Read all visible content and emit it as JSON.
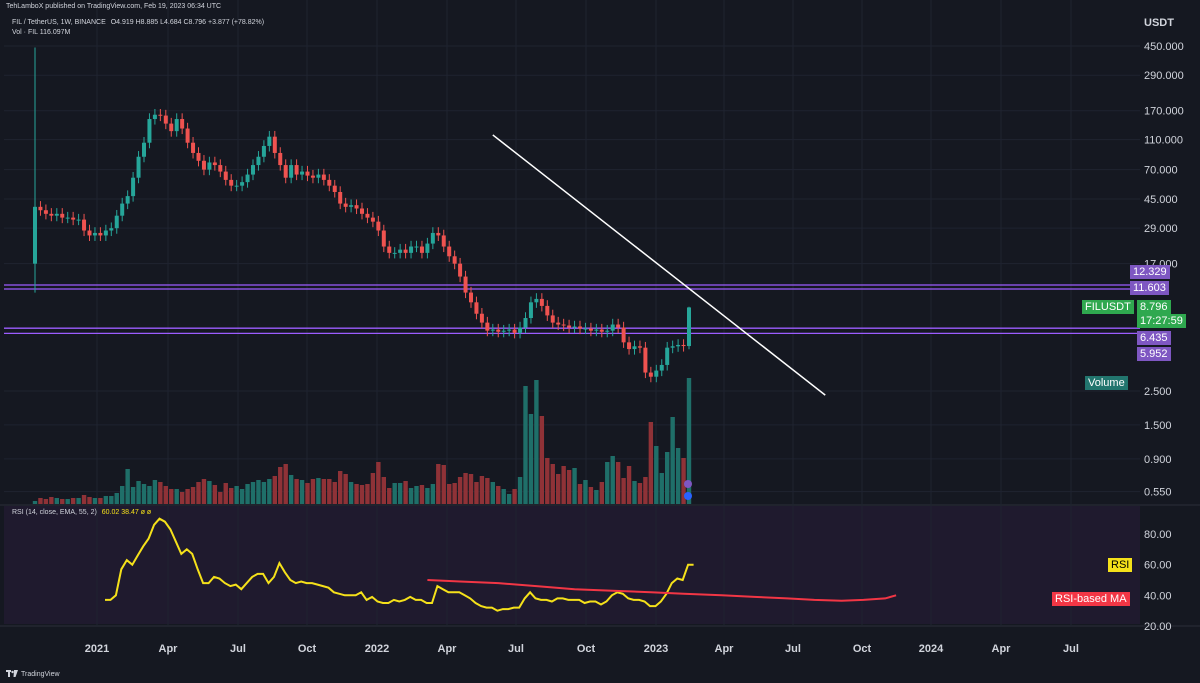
{
  "header": {
    "publisher": "TehLamboX published on TradingView.com, Feb 19, 2023 06:34 UTC",
    "symbol": "FIL / TetherUS, 1W, BINANCE",
    "ohlc": "O4.919 H8.885 L4.684 C8.796 +3.877 (+78.82%)",
    "volume_legend": "Vol · FIL  116.097M",
    "rsi_legend": "RSI (14, close, EMA, 55, 2)",
    "rsi_values": "60.02  38.47  ø  ø"
  },
  "price_axis": {
    "currency": "USDT",
    "ticks": [
      "450.000",
      "290.000",
      "170.000",
      "110.000",
      "70.000",
      "45.000",
      "29.000",
      "17.000",
      "2.500",
      "1.500",
      "0.900",
      "0.550"
    ],
    "tick_values": [
      450,
      290,
      170,
      110,
      70,
      45,
      29,
      17,
      2.5,
      1.5,
      0.9,
      0.55
    ]
  },
  "rsi_axis": {
    "ticks": [
      "80.00",
      "60.00",
      "40.00",
      "20.00"
    ],
    "tick_values": [
      80,
      60,
      40,
      20
    ]
  },
  "time_axis": {
    "labels": [
      "2021",
      "Apr",
      "Jul",
      "Oct",
      "2022",
      "Apr",
      "Jul",
      "Oct",
      "2023",
      "Apr",
      "Jul",
      "Oct",
      "2024",
      "Apr",
      "Jul"
    ]
  },
  "badges": {
    "level_12": "12.329",
    "level_11": "11.603",
    "symbol": "FILUSDT",
    "price": "8.796",
    "countdown": "17:27:59",
    "level_6": "6.435",
    "level_5": "5.952",
    "volume": "Volume",
    "rsi": "RSI",
    "rsi_ma": "RSI-based MA"
  },
  "footer": {
    "brand": "TradingView"
  },
  "colors": {
    "up": "#26a69a",
    "down": "#ef5350",
    "vol_up": "#1f6f69",
    "vol_down": "#8f3237",
    "level": "#9c5cff",
    "trendline": "#ffffff",
    "rsi": "#f5e11a",
    "rsi_ma": "#f23645",
    "bg": "#151821"
  },
  "chart_data": {
    "type": "candlestick",
    "scale": "log",
    "interval": "1W",
    "horizontal_levels": [
      12.329,
      11.603,
      6.435,
      5.952
    ],
    "trendline": [
      [
        84,
        118
      ],
      [
        145,
        2.35
      ]
    ],
    "closes": [
      40,
      38,
      36,
      35,
      36,
      34,
      34,
      33,
      33,
      28,
      26,
      27,
      26,
      28,
      29,
      35,
      42,
      47,
      62,
      85,
      105,
      150,
      160,
      158,
      140,
      125,
      150,
      130,
      105,
      90,
      80,
      70,
      78,
      75,
      68,
      60,
      55,
      55,
      58,
      65,
      75,
      85,
      100,
      115,
      90,
      75,
      62,
      75,
      65,
      68,
      64,
      62,
      65,
      60,
      55,
      50,
      42,
      40,
      41,
      39,
      36,
      34,
      32,
      28,
      22,
      20,
      20,
      21,
      20,
      22,
      22,
      20,
      23,
      27,
      26,
      22,
      19,
      17,
      14,
      11,
      9.5,
      8,
      7,
      6.2,
      6.3,
      6.1,
      6.2,
      6.3,
      6.0,
      6.5,
      7.5,
      9.5,
      10,
      9,
      7.8,
      7.0,
      6.8,
      6.7,
      6.5,
      6.6,
      6.4,
      6.4,
      6.2,
      6.3,
      6.1,
      6.2,
      6.8,
      6.5,
      5.2,
      4.7,
      4.9,
      4.8,
      3.3,
      3.1,
      3.4,
      3.7,
      4.8,
      4.9,
      5.0,
      4.919,
      8.796
    ],
    "volume_fill": [
      0.03,
      0.06,
      0.05,
      0.07,
      0.06,
      0.05,
      0.05,
      0.06,
      0.06,
      0.09,
      0.07,
      0.06,
      0.06,
      0.08,
      0.08,
      0.11,
      0.18,
      0.35,
      0.17,
      0.23,
      0.2,
      0.18,
      0.24,
      0.22,
      0.18,
      0.15,
      0.15,
      0.12,
      0.15,
      0.17,
      0.22,
      0.25,
      0.23,
      0.19,
      0.12,
      0.21,
      0.16,
      0.18,
      0.15,
      0.2,
      0.22,
      0.24,
      0.22,
      0.25,
      0.28,
      0.37,
      0.4,
      0.29,
      0.25,
      0.24,
      0.21,
      0.25,
      0.26,
      0.25,
      0.25,
      0.22,
      0.33,
      0.3,
      0.22,
      0.2,
      0.19,
      0.2,
      0.31,
      0.42,
      0.27,
      0.16,
      0.21,
      0.21,
      0.23,
      0.16,
      0.18,
      0.19,
      0.16,
      0.2,
      0.4,
      0.39,
      0.2,
      0.21,
      0.27,
      0.31,
      0.3,
      0.22,
      0.28,
      0.26,
      0.22,
      0.18,
      0.15,
      0.1,
      0.15,
      0.27,
      1.18,
      0.9,
      1.24,
      0.88,
      0.46,
      0.4,
      0.3,
      0.38,
      0.34,
      0.36,
      0.2,
      0.24,
      0.17,
      0.14,
      0.22,
      0.42,
      0.48,
      0.42,
      0.26,
      0.38,
      0.23,
      0.21,
      0.27,
      0.82,
      0.58,
      0.31,
      0.52,
      0.87,
      0.56,
      0.46,
      1.26
    ],
    "rsi": [
      37,
      37,
      40,
      57,
      63,
      60,
      66,
      72,
      77,
      86,
      90,
      88,
      83,
      75,
      67,
      70,
      67,
      57,
      48,
      48,
      52,
      51,
      48,
      46,
      47,
      44,
      48,
      52,
      54,
      54,
      48,
      52,
      61,
      55,
      50,
      48,
      49,
      48,
      48,
      47,
      46,
      45,
      42,
      41,
      40,
      40,
      40,
      42,
      37,
      39,
      36,
      35,
      35,
      37,
      36,
      37,
      39,
      37,
      37,
      35,
      35,
      46,
      44,
      42,
      42,
      42,
      40,
      38,
      35,
      33,
      32,
      32,
      30,
      31,
      31,
      32,
      32,
      38,
      42,
      38,
      37,
      37,
      36,
      38,
      38,
      37,
      37,
      37,
      35,
      36,
      36,
      34,
      36,
      40,
      42,
      41,
      38,
      37,
      37,
      36,
      33,
      33,
      36,
      41,
      48,
      51,
      50,
      60,
      60
    ],
    "rsi_ma": [
      [
        72,
        50
      ],
      [
        78,
        49
      ],
      [
        85,
        48
      ],
      [
        92,
        46
      ],
      [
        99,
        44
      ],
      [
        106,
        43
      ],
      [
        113,
        42
      ],
      [
        119,
        41
      ],
      [
        126,
        40
      ],
      [
        132,
        39
      ],
      [
        138,
        38
      ],
      [
        143,
        37
      ],
      [
        148,
        36.5
      ],
      [
        152,
        37
      ],
      [
        156,
        38
      ],
      [
        158,
        40
      ]
    ]
  }
}
